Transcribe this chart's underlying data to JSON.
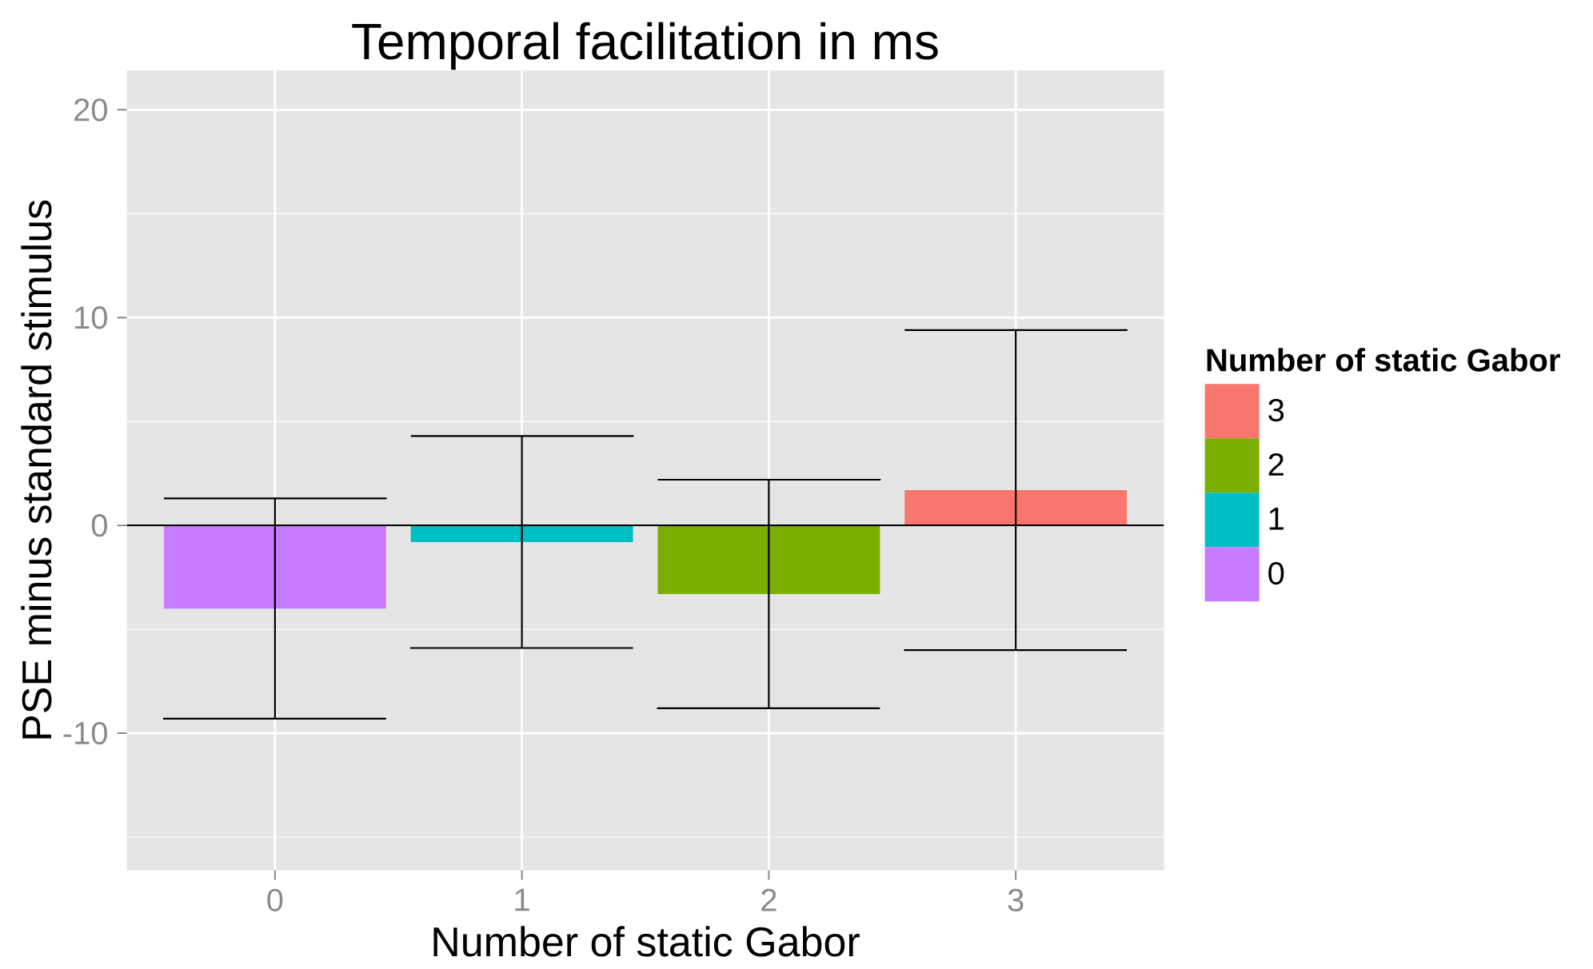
{
  "chart_data": {
    "type": "bar",
    "title": "Temporal facilitation in ms",
    "xlabel": "Number of static Gabor",
    "ylabel": "PSE minus standard stimulus",
    "legend_title": "Number of static Gabor",
    "categories": [
      "0",
      "1",
      "2",
      "3"
    ],
    "stacked": true,
    "series": [
      {
        "name": "0",
        "color": "#c77cff",
        "values": [
          -4.0,
          null,
          null,
          null
        ],
        "errors": [
          5.3,
          null,
          null,
          null
        ]
      },
      {
        "name": "1",
        "color": "#00bfc4",
        "values": [
          null,
          -0.8,
          null,
          null
        ],
        "errors": [
          null,
          5.1,
          null,
          null
        ]
      },
      {
        "name": "2",
        "color": "#7cae00",
        "values": [
          null,
          null,
          -3.3,
          null
        ],
        "errors": [
          null,
          null,
          5.5,
          null
        ]
      },
      {
        "name": "3",
        "color": "#f8766d",
        "values": [
          null,
          null,
          null,
          1.7
        ],
        "errors": [
          null,
          null,
          null,
          7.7
        ]
      }
    ],
    "ylim": [
      -16.6,
      21.9
    ],
    "yticks": [
      -10,
      0,
      10,
      20
    ],
    "grid": true,
    "legend": "right",
    "ref_lines": [
      {
        "axis": "y",
        "value": 0,
        "color": "#000000"
      }
    ]
  }
}
